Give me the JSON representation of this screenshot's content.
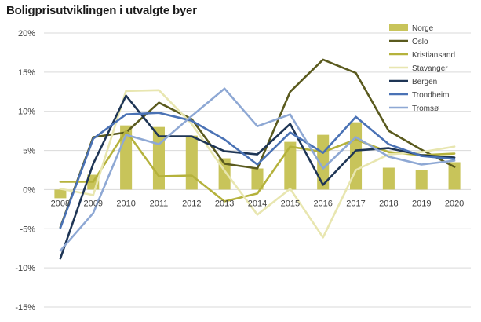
{
  "chart_data": {
    "type": "bar+line",
    "title": "Boligprisutviklingen i utvalgte byer",
    "xlabel": "",
    "ylabel": "",
    "categories": [
      "2008",
      "2009",
      "2010",
      "2011",
      "2012",
      "2013",
      "2014",
      "2015",
      "2016",
      "2017",
      "2018",
      "2019",
      "2020"
    ],
    "ylim": [
      -15,
      20
    ],
    "yticks": [
      -15,
      -10,
      -5,
      0,
      5,
      10,
      15,
      20
    ],
    "ytick_labels": [
      "-15%",
      "-10%",
      "-5%",
      "0%",
      "5%",
      "10%",
      "15%",
      "20%"
    ],
    "grid": true,
    "legend_position": "top-right",
    "bar_series": {
      "name": "Norge",
      "color": "#c8c45a",
      "values": [
        -1.1,
        1.9,
        8.2,
        8.0,
        6.9,
        4.0,
        2.7,
        6.1,
        7.0,
        8.6,
        2.8,
        2.5,
        3.5
      ]
    },
    "series": [
      {
        "name": "Oslo",
        "color": "#5a5a1e",
        "values": [
          -4.8,
          6.7,
          7.3,
          11.1,
          9.0,
          3.3,
          2.7,
          12.5,
          16.6,
          14.9,
          7.5,
          5.1,
          2.9
        ]
      },
      {
        "name": "Kristiansand",
        "color": "#b5b23c",
        "values": [
          1.0,
          1.0,
          7.5,
          1.7,
          1.8,
          -1.5,
          -0.5,
          5.5,
          4.8,
          6.4,
          4.8,
          4.4,
          4.6
        ]
      },
      {
        "name": "Stavanger",
        "color": "#e8e6b0",
        "values": [
          0.1,
          -0.7,
          12.6,
          12.7,
          8.4,
          2.4,
          -3.2,
          0.1,
          -6.1,
          2.5,
          4.5,
          4.8,
          5.5
        ]
      },
      {
        "name": "Bergen",
        "color": "#1e3555",
        "values": [
          -8.8,
          3.3,
          12.0,
          6.8,
          6.8,
          4.9,
          4.5,
          8.4,
          0.6,
          5.0,
          5.3,
          4.4,
          4.1
        ]
      },
      {
        "name": "Trondheim",
        "color": "#4a72b5",
        "values": [
          -4.9,
          6.5,
          9.6,
          9.8,
          8.8,
          6.4,
          3.2,
          7.3,
          4.7,
          9.3,
          5.8,
          4.3,
          3.9
        ]
      },
      {
        "name": "Tromsø",
        "color": "#8ea8d4",
        "values": [
          -7.8,
          -3.0,
          7.0,
          5.8,
          9.4,
          12.9,
          8.1,
          9.6,
          2.7,
          6.7,
          4.2,
          3.2,
          3.7
        ]
      }
    ]
  }
}
